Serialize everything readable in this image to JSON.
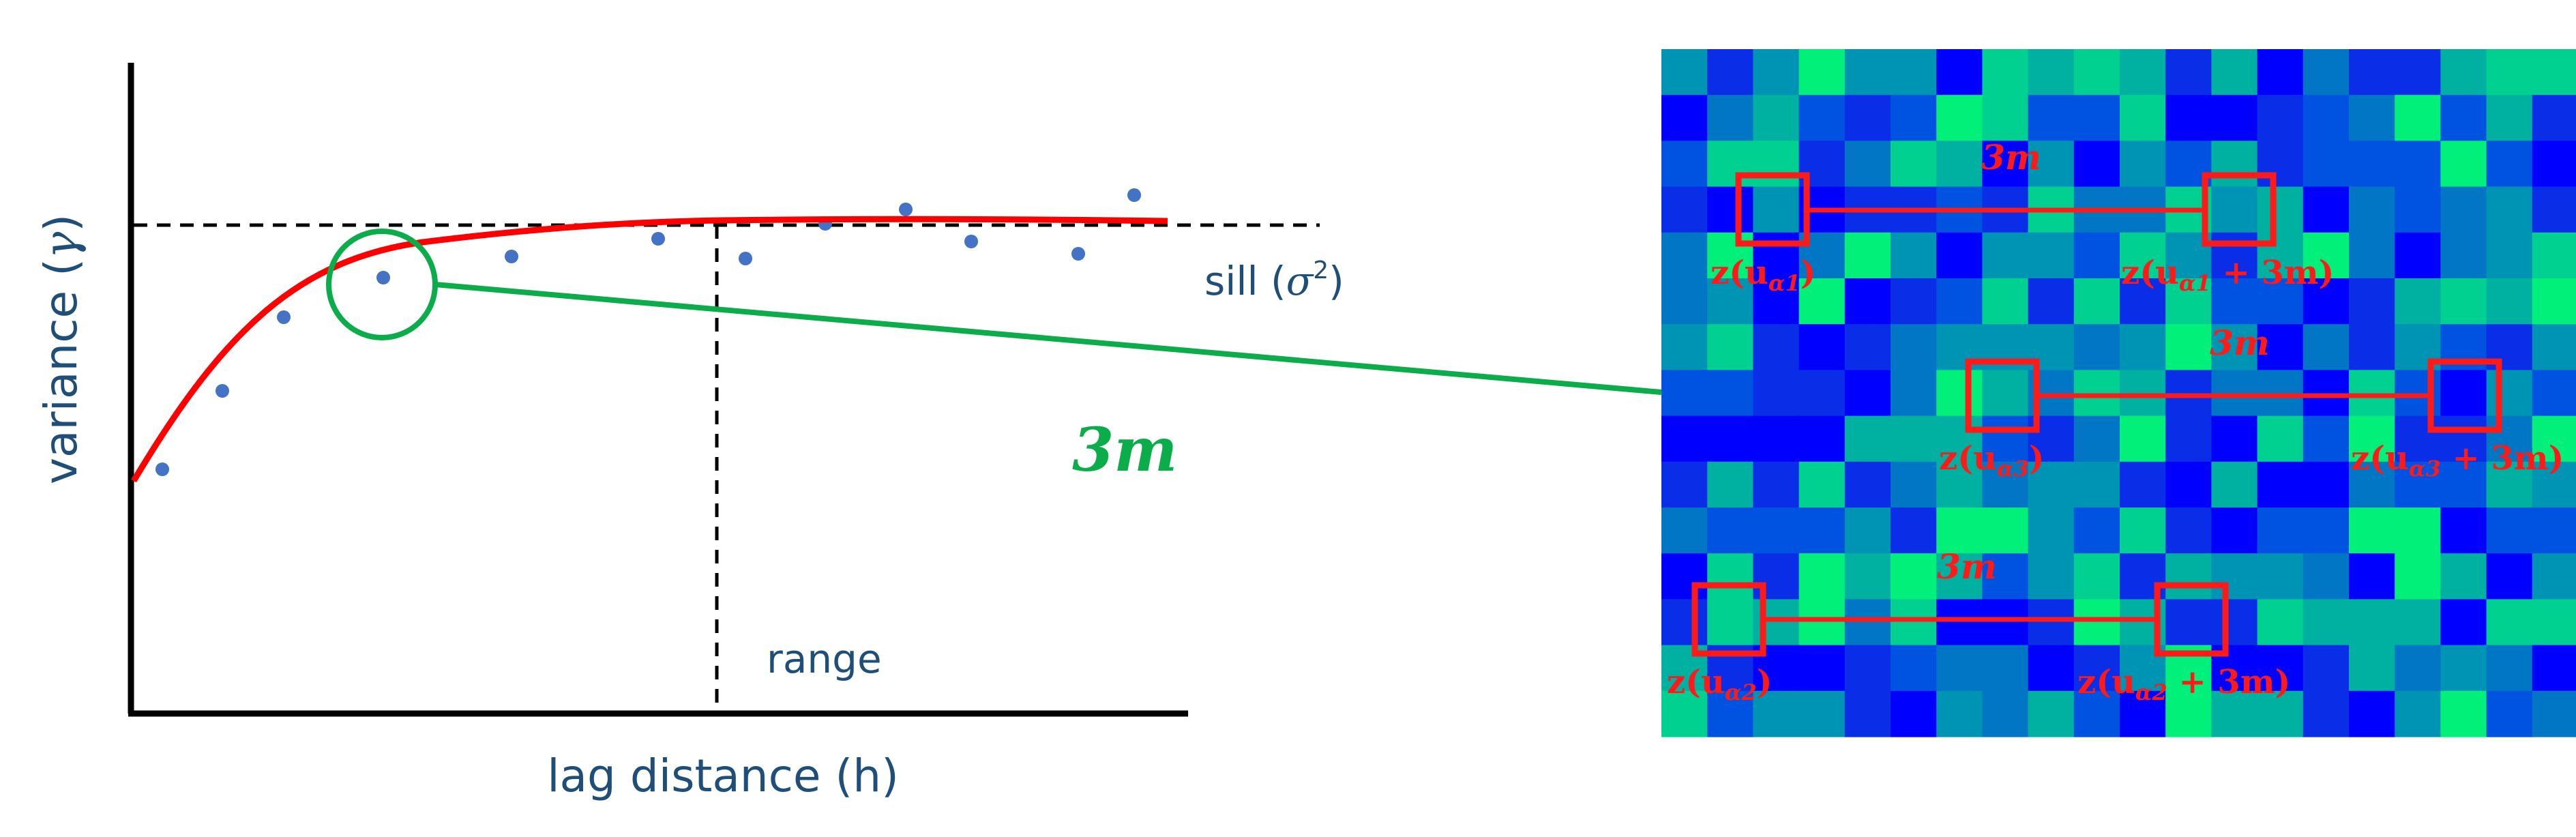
{
  "variogram": {
    "ylabel": "variance (",
    "ylabel_symbol": "γ",
    "ylabel_close": ")",
    "xlabel": "lag distance (h)",
    "sill_text": "sill (",
    "sill_symbol": "σ",
    "sill_exp": "2",
    "sill_close": ")",
    "range_label": "range",
    "lag_label": "3m",
    "curve_color": "#ff0000",
    "point_color": "#4472c4",
    "highlight_color": "#0aad4a"
  },
  "grid": {
    "colors": [
      "#0000ff",
      "#0a2ee8",
      "#0052e0",
      "#0076c4",
      "#0094b4",
      "#00b0a0",
      "#00d090",
      "#00f07a"
    ],
    "pairs": [
      {
        "distance_label": "3m",
        "left": {
          "prefix": "z(u",
          "sub": "α1",
          "suffix": ")"
        },
        "right": {
          "prefix": "z(u",
          "sub": "α1",
          "suffix": " + 3m)"
        }
      },
      {
        "distance_label": "3m",
        "left": {
          "prefix": "z(u",
          "sub": "α3",
          "suffix": ")"
        },
        "right": {
          "prefix": "z(u",
          "sub": "α3",
          "suffix": " + 3m)"
        }
      },
      {
        "distance_label": "3m",
        "left": {
          "prefix": "z(u",
          "sub": "α2",
          "suffix": ")"
        },
        "right": {
          "prefix": "z(u",
          "sub": "α2",
          "suffix": " + 3m)"
        }
      }
    ]
  }
}
